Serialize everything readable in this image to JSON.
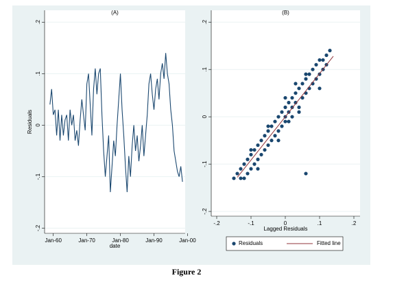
{
  "caption": "Figure 2",
  "chart_data": [
    {
      "type": "line",
      "title": "(A)",
      "y_label": "Residuals",
      "x_label": "date",
      "color": "#1a476f",
      "grid": true,
      "x": [
        1959,
        1959.5,
        1960,
        1960.5,
        1961,
        1961.5,
        1962,
        1962.5,
        1963,
        1963.5,
        1964,
        1964.5,
        1965,
        1965.5,
        1966,
        1966.5,
        1967,
        1967.5,
        1968,
        1968.5,
        1969,
        1969.5,
        1970,
        1970.5,
        1971,
        1971.5,
        1972,
        1972.5,
        1973,
        1973.5,
        1974,
        1974.5,
        1975,
        1975.5,
        1976,
        1976.5,
        1977,
        1977.5,
        1978,
        1978.5,
        1979,
        1979.5,
        1980,
        1980.5,
        1981,
        1981.5,
        1982,
        1982.5,
        1983,
        1983.5,
        1984,
        1984.5,
        1985,
        1985.5,
        1986,
        1986.5,
        1987,
        1987.5,
        1988,
        1988.5,
        1989,
        1989.5,
        1990,
        1990.5,
        1991,
        1991.5,
        1992,
        1992.5,
        1993,
        1993.5,
        1994,
        1994.5,
        1995,
        1995.5,
        1996,
        1996.5,
        1997,
        1997.5,
        1998,
        1998.5
      ],
      "values": [
        0.04,
        0.07,
        0.02,
        0.03,
        -0.02,
        0.03,
        -0.03,
        0.02,
        -0.02,
        0.01,
        0.02,
        -0.03,
        0.03,
        0.0,
        0.02,
        -0.03,
        -0.01,
        -0.04,
        0.01,
        0.05,
        0.02,
        -0.01,
        0.08,
        0.1,
        0.04,
        -0.02,
        0.07,
        0.11,
        0.06,
        0.1,
        0.11,
        0.02,
        -0.05,
        -0.1,
        -0.06,
        -0.02,
        -0.13,
        -0.08,
        -0.03,
        -0.06,
        0.0,
        0.05,
        0.1,
        0.03,
        -0.02,
        -0.08,
        -0.13,
        -0.06,
        -0.1,
        -0.04,
        0.0,
        -0.05,
        -0.02,
        -0.07,
        -0.04,
        0.0,
        -0.06,
        -0.02,
        0.02,
        0.08,
        0.1,
        0.06,
        0.03,
        0.07,
        0.09,
        0.05,
        0.1,
        0.12,
        0.09,
        0.14,
        0.1,
        0.08,
        0.03,
        0.0,
        -0.05,
        -0.07,
        -0.09,
        -0.1,
        -0.08,
        -0.11
      ],
      "xlim": [
        1957.4,
        1999.3
      ],
      "xticks": [
        {
          "value": 1960,
          "label": "Jan-60"
        },
        {
          "value": 1970,
          "label": "Jan-70"
        },
        {
          "value": 1980,
          "label": "Jan-80"
        },
        {
          "value": 1990,
          "label": "Jan-90"
        },
        {
          "value": 2000,
          "label": "Jan-00"
        }
      ],
      "ylim": [
        -0.21,
        0.223
      ],
      "yticks": [
        {
          "value": -0.2,
          "label": "-.2"
        },
        {
          "value": -0.1,
          "label": "-.1"
        },
        0,
        {
          "value": 0.1,
          "label": ".1"
        },
        {
          "value": 0.2,
          "label": ".2"
        }
      ]
    },
    {
      "type": "scatter",
      "title": "(B)",
      "x_label": "Lagged Residuals",
      "grid": true,
      "legend": "bottom",
      "series": [
        {
          "name": "Residuals",
          "type": "scatter",
          "color": "#1a476f",
          "x": [
            -0.14,
            -0.13,
            -0.13,
            -0.12,
            -0.12,
            -0.11,
            -0.11,
            -0.1,
            -0.1,
            -0.09,
            -0.09,
            -0.08,
            -0.08,
            -0.07,
            -0.07,
            -0.06,
            -0.06,
            -0.05,
            -0.05,
            -0.04,
            -0.04,
            -0.03,
            -0.03,
            -0.02,
            -0.02,
            -0.01,
            -0.01,
            0,
            0,
            0,
            0.01,
            0.01,
            0.01,
            0.02,
            0.02,
            0.02,
            0.03,
            0.03,
            0.04,
            0.04,
            0.05,
            0.05,
            0.06,
            0.06,
            0.07,
            0.07,
            0.08,
            0.08,
            0.09,
            0.09,
            0.1,
            0.1,
            0.11,
            0.11,
            0.12,
            0.12,
            0.13,
            -0.15,
            -0.05,
            0.0,
            0.03,
            0.06,
            -0.08,
            0.1,
            0.06,
            -0.02,
            0.04,
            -0.1
          ],
          "values": [
            -0.12,
            -0.13,
            -0.11,
            -0.1,
            -0.13,
            -0.09,
            -0.12,
            -0.11,
            -0.08,
            -0.07,
            -0.1,
            -0.09,
            -0.06,
            -0.05,
            -0.08,
            -0.07,
            -0.04,
            -0.03,
            -0.06,
            -0.05,
            -0.02,
            -0.01,
            -0.04,
            -0.03,
            0.0,
            0.01,
            -0.02,
            0.0,
            -0.01,
            0.02,
            0.01,
            0.03,
            -0.01,
            0.02,
            0.04,
            0.0,
            0.03,
            0.05,
            0.02,
            0.06,
            0.04,
            0.07,
            0.05,
            0.08,
            0.06,
            0.09,
            0.07,
            0.1,
            0.08,
            0.11,
            0.09,
            0.12,
            0.1,
            0.12,
            0.11,
            0.13,
            0.14,
            -0.13,
            -0.02,
            0.04,
            0.07,
            0.09,
            -0.11,
            0.06,
            -0.12,
            -0.05,
            0.01,
            -0.07
          ]
        },
        {
          "name": "Fitted line",
          "type": "line",
          "color": "#90353b",
          "x": [
            -0.14,
            0.14
          ],
          "values": [
            -0.128,
            0.128
          ]
        }
      ],
      "xlim": [
        -0.216,
        0.218
      ],
      "xticks": [
        {
          "value": -0.2,
          "label": "-.2"
        },
        {
          "value": -0.1,
          "label": "-.1"
        },
        0,
        {
          "value": 0.1,
          "label": ".1"
        },
        {
          "value": 0.2,
          "label": ".2"
        }
      ],
      "ylim": [
        -0.21,
        0.225
      ],
      "yticks": [
        {
          "value": -0.2,
          "label": "-.2"
        },
        {
          "value": -0.1,
          "label": "-.1"
        },
        0,
        {
          "value": 0.1,
          "label": ".1"
        },
        {
          "value": 0.2,
          "label": ".2"
        }
      ]
    }
  ]
}
